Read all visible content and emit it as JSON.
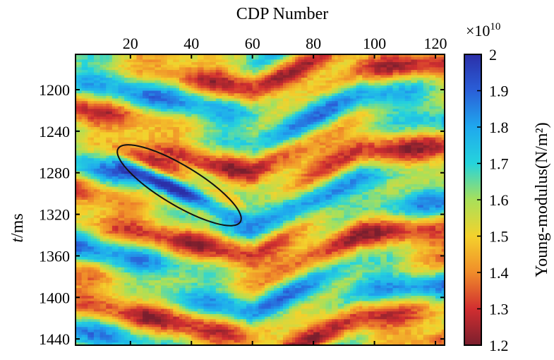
{
  "chart_data": {
    "type": "heatmap",
    "title": "",
    "xlabel": "CDP Number",
    "ylabel_italic": "t",
    "ylabel_rest": "/ms",
    "x_ticks": [
      20,
      40,
      60,
      80,
      100,
      120
    ],
    "x_tick_labels": [
      "20",
      "40",
      "60",
      "80",
      "100",
      "120"
    ],
    "xlim": [
      2,
      123
    ],
    "y_ticks": [
      1200,
      1240,
      1280,
      1320,
      1360,
      1400,
      1440
    ],
    "y_tick_labels": [
      "1200",
      "1240",
      "1280",
      "1320",
      "1360",
      "1400",
      "1440"
    ],
    "ylim": [
      1166,
      1446
    ],
    "colorbar": {
      "label": "Young-modulus(N/m²)",
      "exponent_base": "×10",
      "exponent_power": "10",
      "ticks": [
        1.2,
        1.3,
        1.4,
        1.5,
        1.6,
        1.7,
        1.8,
        1.9,
        2.0
      ],
      "tick_labels": [
        "1.2",
        "1.3",
        "1.4",
        "1.5",
        "1.6",
        "1.7",
        "1.8",
        "1.9",
        "2"
      ],
      "range": [
        1.2,
        2.0
      ],
      "colors": [
        "#7a1f2e",
        "#d12e30",
        "#f08c2a",
        "#f4d22c",
        "#a8e05a",
        "#25d4dc",
        "#1fa8ee",
        "#2a5fd8",
        "#2b2fa8"
      ]
    },
    "annotation": {
      "shape": "ellipse",
      "center_cdp": 36,
      "center_t_ms": 1292,
      "description": "high Young-modulus anomaly"
    }
  }
}
